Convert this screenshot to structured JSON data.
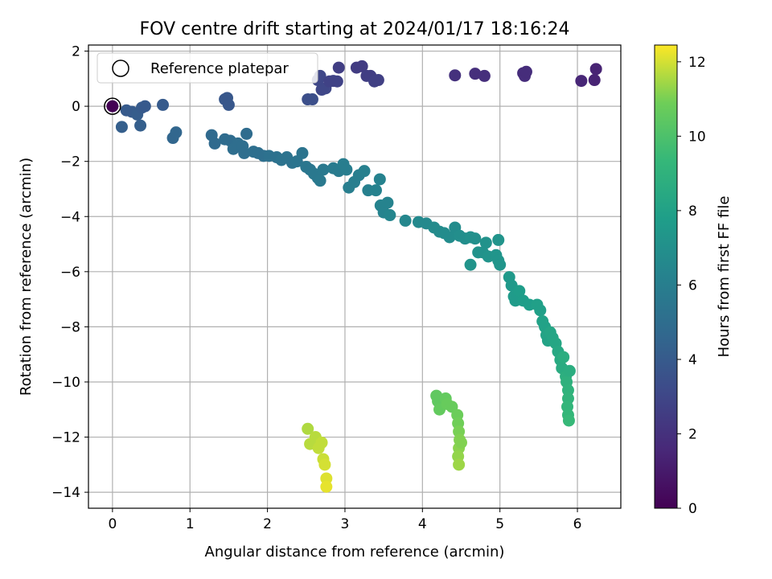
{
  "chart_data": {
    "type": "scatter",
    "title": "FOV centre drift starting at 2024/01/17 18:16:24",
    "xlabel": "Angular distance from reference (arcmin)",
    "ylabel": "Rotation from reference (arcmin)",
    "xlim": [
      -0.31,
      6.56
    ],
    "ylim": [
      -14.58,
      2.22
    ],
    "x_ticks": [
      0,
      1,
      2,
      3,
      4,
      5,
      6
    ],
    "y_ticks": [
      2,
      0,
      -2,
      -4,
      -6,
      -8,
      -10,
      -12,
      -14
    ],
    "grid": true,
    "legend": {
      "placement": "upper-left",
      "entries": [
        "Reference platepar"
      ]
    },
    "reference_point": {
      "x": 0,
      "y": 0,
      "label": "Reference platepar"
    },
    "colorbar": {
      "label": "Hours from first FF file",
      "range": [
        0,
        12.45
      ],
      "ticks": [
        0,
        2,
        4,
        6,
        8,
        10,
        12
      ],
      "colormap": "viridis"
    },
    "points": [
      {
        "x": 0.0,
        "y": 0.0,
        "h": 0.0
      },
      {
        "x": 0.12,
        "y": -0.75,
        "h": 4.2
      },
      {
        "x": 0.18,
        "y": -0.15,
        "h": 4.0
      },
      {
        "x": 0.25,
        "y": -0.2,
        "h": 4.0
      },
      {
        "x": 0.32,
        "y": -0.3,
        "h": 4.1
      },
      {
        "x": 0.36,
        "y": -0.7,
        "h": 4.2
      },
      {
        "x": 0.38,
        "y": -0.05,
        "h": 4.0
      },
      {
        "x": 0.42,
        "y": 0.0,
        "h": 3.9
      },
      {
        "x": 0.65,
        "y": 0.05,
        "h": 4.0
      },
      {
        "x": 0.78,
        "y": -1.15,
        "h": 4.6
      },
      {
        "x": 0.82,
        "y": -0.95,
        "h": 4.6
      },
      {
        "x": 1.45,
        "y": 0.25,
        "h": 3.8
      },
      {
        "x": 1.48,
        "y": 0.3,
        "h": 3.8
      },
      {
        "x": 1.5,
        "y": 0.05,
        "h": 3.8
      },
      {
        "x": 2.52,
        "y": 0.25,
        "h": 3.4
      },
      {
        "x": 2.58,
        "y": 0.25,
        "h": 3.4
      },
      {
        "x": 2.65,
        "y": 0.95,
        "h": 3.0
      },
      {
        "x": 2.68,
        "y": 1.1,
        "h": 3.0
      },
      {
        "x": 2.7,
        "y": 0.6,
        "h": 3.0
      },
      {
        "x": 2.75,
        "y": 0.65,
        "h": 3.0
      },
      {
        "x": 2.8,
        "y": 0.9,
        "h": 2.8
      },
      {
        "x": 2.85,
        "y": 0.92,
        "h": 2.8
      },
      {
        "x": 2.9,
        "y": 0.9,
        "h": 2.8
      },
      {
        "x": 2.92,
        "y": 1.4,
        "h": 2.6
      },
      {
        "x": 3.15,
        "y": 1.4,
        "h": 2.5
      },
      {
        "x": 3.22,
        "y": 1.45,
        "h": 2.5
      },
      {
        "x": 3.28,
        "y": 1.1,
        "h": 2.6
      },
      {
        "x": 3.33,
        "y": 1.1,
        "h": 2.6
      },
      {
        "x": 3.38,
        "y": 0.9,
        "h": 2.7
      },
      {
        "x": 3.43,
        "y": 0.95,
        "h": 2.7
      },
      {
        "x": 4.42,
        "y": 1.12,
        "h": 2.0
      },
      {
        "x": 4.68,
        "y": 1.18,
        "h": 1.9
      },
      {
        "x": 4.8,
        "y": 1.1,
        "h": 1.9
      },
      {
        "x": 5.3,
        "y": 1.2,
        "h": 1.8
      },
      {
        "x": 5.32,
        "y": 1.1,
        "h": 1.8
      },
      {
        "x": 5.34,
        "y": 1.25,
        "h": 1.8
      },
      {
        "x": 6.05,
        "y": 0.92,
        "h": 1.5
      },
      {
        "x": 6.22,
        "y": 0.95,
        "h": 1.4
      },
      {
        "x": 6.24,
        "y": 1.35,
        "h": 1.4
      },
      {
        "x": 1.28,
        "y": -1.05,
        "h": 4.8
      },
      {
        "x": 1.32,
        "y": -1.35,
        "h": 4.8
      },
      {
        "x": 1.45,
        "y": -1.2,
        "h": 4.9
      },
      {
        "x": 1.52,
        "y": -1.25,
        "h": 4.9
      },
      {
        "x": 1.56,
        "y": -1.55,
        "h": 5.0
      },
      {
        "x": 1.62,
        "y": -1.35,
        "h": 5.0
      },
      {
        "x": 1.68,
        "y": -1.45,
        "h": 5.0
      },
      {
        "x": 1.7,
        "y": -1.7,
        "h": 5.0
      },
      {
        "x": 1.73,
        "y": -1.0,
        "h": 4.9
      },
      {
        "x": 1.82,
        "y": -1.65,
        "h": 5.1
      },
      {
        "x": 1.88,
        "y": -1.7,
        "h": 5.1
      },
      {
        "x": 1.95,
        "y": -1.8,
        "h": 5.1
      },
      {
        "x": 2.02,
        "y": -1.8,
        "h": 5.2
      },
      {
        "x": 2.12,
        "y": -1.85,
        "h": 5.2
      },
      {
        "x": 2.18,
        "y": -1.95,
        "h": 5.3
      },
      {
        "x": 2.25,
        "y": -1.85,
        "h": 5.3
      },
      {
        "x": 2.32,
        "y": -2.05,
        "h": 5.3
      },
      {
        "x": 2.38,
        "y": -2.0,
        "h": 5.4
      },
      {
        "x": 2.45,
        "y": -1.7,
        "h": 5.4
      },
      {
        "x": 2.5,
        "y": -2.2,
        "h": 5.5
      },
      {
        "x": 2.55,
        "y": -2.3,
        "h": 5.5
      },
      {
        "x": 2.6,
        "y": -2.45,
        "h": 5.6
      },
      {
        "x": 2.65,
        "y": -2.6,
        "h": 5.6
      },
      {
        "x": 2.68,
        "y": -2.7,
        "h": 5.7
      },
      {
        "x": 2.72,
        "y": -2.3,
        "h": 5.7
      },
      {
        "x": 2.85,
        "y": -2.25,
        "h": 5.8
      },
      {
        "x": 2.92,
        "y": -2.35,
        "h": 5.8
      },
      {
        "x": 2.98,
        "y": -2.1,
        "h": 5.9
      },
      {
        "x": 3.02,
        "y": -2.3,
        "h": 5.9
      },
      {
        "x": 3.05,
        "y": -2.95,
        "h": 6.0
      },
      {
        "x": 3.12,
        "y": -2.75,
        "h": 6.0
      },
      {
        "x": 3.18,
        "y": -2.5,
        "h": 6.0
      },
      {
        "x": 3.25,
        "y": -2.35,
        "h": 6.1
      },
      {
        "x": 3.3,
        "y": -3.05,
        "h": 6.1
      },
      {
        "x": 3.4,
        "y": -3.05,
        "h": 6.2
      },
      {
        "x": 3.45,
        "y": -2.65,
        "h": 6.2
      },
      {
        "x": 3.46,
        "y": -3.6,
        "h": 6.3
      },
      {
        "x": 3.5,
        "y": -3.85,
        "h": 6.3
      },
      {
        "x": 3.55,
        "y": -3.5,
        "h": 6.3
      },
      {
        "x": 3.58,
        "y": -3.95,
        "h": 6.4
      },
      {
        "x": 3.78,
        "y": -4.15,
        "h": 6.5
      },
      {
        "x": 3.95,
        "y": -4.2,
        "h": 6.6
      },
      {
        "x": 4.05,
        "y": -4.25,
        "h": 6.6
      },
      {
        "x": 4.15,
        "y": -4.4,
        "h": 6.7
      },
      {
        "x": 4.22,
        "y": -4.55,
        "h": 6.7
      },
      {
        "x": 4.28,
        "y": -4.6,
        "h": 6.8
      },
      {
        "x": 4.35,
        "y": -4.75,
        "h": 6.8
      },
      {
        "x": 4.42,
        "y": -4.4,
        "h": 6.8
      },
      {
        "x": 4.48,
        "y": -4.7,
        "h": 6.9
      },
      {
        "x": 4.55,
        "y": -4.8,
        "h": 6.9
      },
      {
        "x": 4.62,
        "y": -4.75,
        "h": 7.0
      },
      {
        "x": 4.68,
        "y": -4.8,
        "h": 7.0
      },
      {
        "x": 4.72,
        "y": -5.3,
        "h": 7.1
      },
      {
        "x": 4.78,
        "y": -5.3,
        "h": 7.1
      },
      {
        "x": 4.82,
        "y": -4.95,
        "h": 7.1
      },
      {
        "x": 4.85,
        "y": -5.45,
        "h": 7.2
      },
      {
        "x": 4.62,
        "y": -5.75,
        "h": 7.2
      },
      {
        "x": 4.95,
        "y": -5.4,
        "h": 7.3
      },
      {
        "x": 4.98,
        "y": -5.6,
        "h": 7.3
      },
      {
        "x": 5.0,
        "y": -5.75,
        "h": 7.3
      },
      {
        "x": 4.98,
        "y": -4.85,
        "h": 7.2
      },
      {
        "x": 5.12,
        "y": -6.2,
        "h": 7.5
      },
      {
        "x": 5.15,
        "y": -6.5,
        "h": 7.5
      },
      {
        "x": 5.18,
        "y": -6.9,
        "h": 7.6
      },
      {
        "x": 5.2,
        "y": -7.05,
        "h": 7.6
      },
      {
        "x": 5.25,
        "y": -6.7,
        "h": 7.7
      },
      {
        "x": 5.3,
        "y": -7.05,
        "h": 7.7
      },
      {
        "x": 5.38,
        "y": -7.2,
        "h": 7.8
      },
      {
        "x": 5.48,
        "y": -7.2,
        "h": 7.9
      },
      {
        "x": 5.52,
        "y": -7.4,
        "h": 7.9
      },
      {
        "x": 5.55,
        "y": -7.8,
        "h": 8.0
      },
      {
        "x": 5.58,
        "y": -8.0,
        "h": 8.0
      },
      {
        "x": 5.6,
        "y": -8.3,
        "h": 8.1
      },
      {
        "x": 5.62,
        "y": -8.5,
        "h": 8.1
      },
      {
        "x": 5.65,
        "y": -8.2,
        "h": 8.2
      },
      {
        "x": 5.68,
        "y": -8.4,
        "h": 8.2
      },
      {
        "x": 5.72,
        "y": -8.6,
        "h": 8.3
      },
      {
        "x": 5.75,
        "y": -8.9,
        "h": 8.4
      },
      {
        "x": 5.78,
        "y": -9.2,
        "h": 8.5
      },
      {
        "x": 5.8,
        "y": -9.5,
        "h": 8.6
      },
      {
        "x": 5.82,
        "y": -9.1,
        "h": 8.7
      },
      {
        "x": 5.85,
        "y": -9.8,
        "h": 8.8
      },
      {
        "x": 5.86,
        "y": -10.0,
        "h": 8.9
      },
      {
        "x": 5.88,
        "y": -10.3,
        "h": 9.0
      },
      {
        "x": 5.88,
        "y": -10.6,
        "h": 9.1
      },
      {
        "x": 5.87,
        "y": -10.9,
        "h": 9.2
      },
      {
        "x": 5.88,
        "y": -11.2,
        "h": 9.3
      },
      {
        "x": 5.89,
        "y": -11.4,
        "h": 9.4
      },
      {
        "x": 5.9,
        "y": -9.6,
        "h": 8.7
      },
      {
        "x": 4.18,
        "y": -10.5,
        "h": 10.5
      },
      {
        "x": 4.2,
        "y": -10.7,
        "h": 10.5
      },
      {
        "x": 4.22,
        "y": -11.0,
        "h": 10.6
      },
      {
        "x": 4.3,
        "y": -10.6,
        "h": 10.6
      },
      {
        "x": 4.32,
        "y": -10.8,
        "h": 10.7
      },
      {
        "x": 4.38,
        "y": -10.9,
        "h": 10.7
      },
      {
        "x": 4.45,
        "y": -11.2,
        "h": 10.8
      },
      {
        "x": 4.46,
        "y": -11.5,
        "h": 10.9
      },
      {
        "x": 4.47,
        "y": -11.8,
        "h": 11.0
      },
      {
        "x": 4.48,
        "y": -12.1,
        "h": 11.1
      },
      {
        "x": 4.47,
        "y": -12.4,
        "h": 11.2
      },
      {
        "x": 4.46,
        "y": -12.7,
        "h": 11.3
      },
      {
        "x": 4.47,
        "y": -13.0,
        "h": 11.4
      },
      {
        "x": 4.5,
        "y": -12.2,
        "h": 11.1
      },
      {
        "x": 2.52,
        "y": -11.7,
        "h": 11.6
      },
      {
        "x": 2.55,
        "y": -12.25,
        "h": 11.7
      },
      {
        "x": 2.62,
        "y": -12.0,
        "h": 11.7
      },
      {
        "x": 2.66,
        "y": -12.4,
        "h": 11.8
      },
      {
        "x": 2.7,
        "y": -12.2,
        "h": 11.8
      },
      {
        "x": 2.72,
        "y": -12.8,
        "h": 11.9
      },
      {
        "x": 2.74,
        "y": -13.0,
        "h": 12.0
      },
      {
        "x": 2.76,
        "y": -13.5,
        "h": 12.1
      },
      {
        "x": 2.76,
        "y": -13.8,
        "h": 12.2
      }
    ]
  }
}
